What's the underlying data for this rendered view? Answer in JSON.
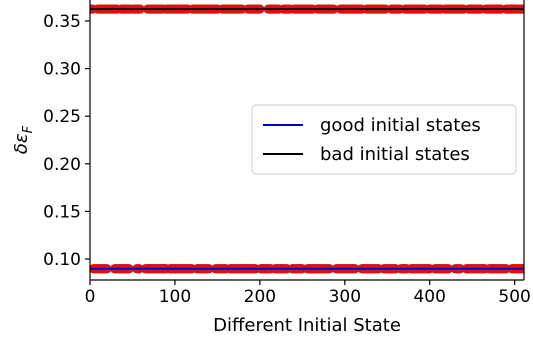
{
  "chart_data": {
    "type": "scatter",
    "xlabel": "Different Initial State",
    "ylabel": "δε_F",
    "xlim": [
      0,
      511
    ],
    "ylim": [
      0.078,
      0.372
    ],
    "xticks": [
      0,
      100,
      200,
      300,
      400,
      500
    ],
    "yticks": [
      0.1,
      0.15,
      0.2,
      0.25,
      0.3,
      0.35
    ],
    "ytick_labels": [
      "0.10",
      "0.15",
      "0.20",
      "0.25",
      "0.30",
      "0.35"
    ],
    "grid": false,
    "legend": {
      "placement": "center-right",
      "entries": [
        {
          "label": "good initial states",
          "color": "#0000cc"
        },
        {
          "label": "bad initial states",
          "color": "#000000"
        }
      ]
    },
    "reference_lines": [
      {
        "name": "good initial states",
        "y": 0.0898,
        "color": "#0000cc"
      },
      {
        "name": "bad initial states",
        "y": 0.3625,
        "color": "#000000"
      }
    ],
    "series": [
      {
        "marker_color": "#dd1111",
        "y": 0.3625,
        "x_ranges": [
          [
            0,
            3
          ],
          [
            9,
            32
          ],
          [
            37,
            47
          ],
          [
            51,
            59
          ],
          [
            68,
            86
          ],
          [
            90,
            115
          ],
          [
            121,
            150
          ],
          [
            156,
            179
          ],
          [
            186,
            200
          ],
          [
            210,
            222
          ],
          [
            228,
            235
          ],
          [
            240,
            262
          ],
          [
            268,
            287
          ],
          [
            295,
            320
          ],
          [
            326,
            348
          ],
          [
            355,
            365
          ],
          [
            371,
            394
          ],
          [
            400,
            413
          ],
          [
            418,
            440
          ],
          [
            446,
            460
          ],
          [
            466,
            484
          ],
          [
            490,
            511
          ]
        ]
      },
      {
        "marker_color": "#dd1111",
        "y": 0.0898,
        "x_ranges": [
          [
            4,
            20
          ],
          [
            29,
            46
          ],
          [
            55,
            58
          ],
          [
            65,
            90
          ],
          [
            94,
            120
          ],
          [
            126,
            140
          ],
          [
            148,
            160
          ],
          [
            165,
            195
          ],
          [
            201,
            213
          ],
          [
            218,
            232
          ],
          [
            238,
            250
          ],
          [
            256,
            282
          ],
          [
            290,
            312
          ],
          [
            320,
            340
          ],
          [
            346,
            360
          ],
          [
            366,
            373
          ],
          [
            378,
            400
          ],
          [
            406,
            422
          ],
          [
            430,
            436
          ],
          [
            443,
            465
          ],
          [
            470,
            490
          ],
          [
            497,
            511
          ]
        ]
      }
    ]
  }
}
